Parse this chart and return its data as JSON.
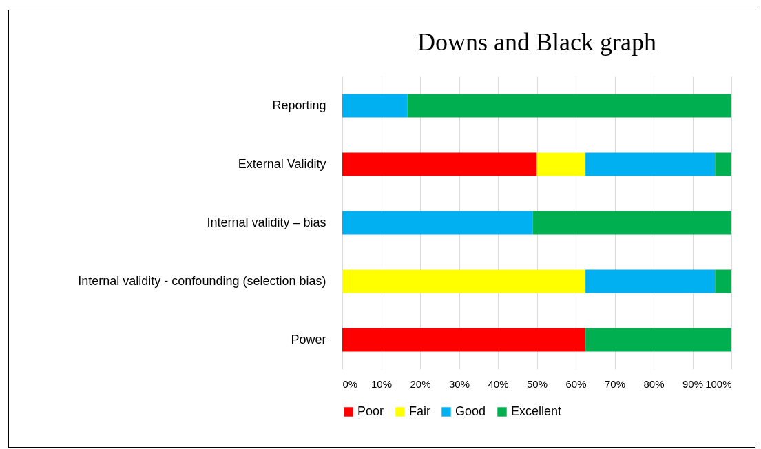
{
  "chart_data": {
    "type": "bar",
    "orientation": "horizontal",
    "stacked": true,
    "title": "Downs and Black graph",
    "categories": [
      "Reporting",
      "External Validity",
      "Internal validity – bias",
      "Internal validity - confounding (selection bias)",
      "Power"
    ],
    "series": [
      {
        "name": "Poor",
        "color": "#ff0000",
        "values": [
          null,
          50,
          null,
          null,
          62.5
        ]
      },
      {
        "name": "Fair",
        "color": "#ffff00",
        "values": [
          null,
          12.5,
          null,
          62.5,
          null
        ]
      },
      {
        "name": "Good",
        "color": "#00b0f0",
        "values": [
          16.7,
          33.3,
          49,
          33.3,
          null
        ]
      },
      {
        "name": "Excellent",
        "color": "#00b050",
        "values": [
          83.3,
          4.2,
          51,
          4.2,
          37.5
        ]
      }
    ],
    "xlim": [
      0,
      100
    ],
    "xticks": [
      {
        "value": 0,
        "label": "0%"
      },
      {
        "value": 10,
        "label": "10%"
      },
      {
        "value": 20,
        "label": "20%"
      },
      {
        "value": 30,
        "label": "30%"
      },
      {
        "value": 40,
        "label": "40%"
      },
      {
        "value": 50,
        "label": "50%"
      },
      {
        "value": 60,
        "label": "60%"
      },
      {
        "value": 70,
        "label": "70%"
      },
      {
        "value": 80,
        "label": "80%"
      },
      {
        "value": 90,
        "label": "90%"
      },
      {
        "value": 100,
        "label": "100%"
      }
    ],
    "grid": "x",
    "legend": "bottom"
  }
}
